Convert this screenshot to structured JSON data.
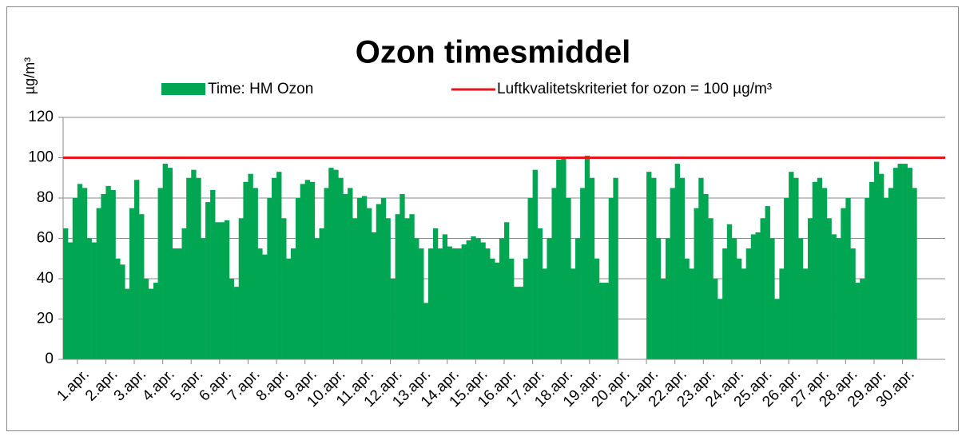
{
  "chart_data": {
    "type": "bar",
    "title": "Ozon timesmiddel",
    "y_label": "µg/m³",
    "x": [
      1,
      1.17,
      1.33,
      1.5,
      1.67,
      1.83,
      2,
      2.17,
      2.33,
      2.5,
      2.67,
      2.83,
      3,
      3.17,
      3.33,
      3.5,
      3.67,
      3.83,
      4,
      4.17,
      4.33,
      4.5,
      4.67,
      4.83,
      5,
      5.17,
      5.33,
      5.5,
      5.67,
      5.83,
      6,
      6.17,
      6.33,
      6.5,
      6.67,
      6.83,
      7,
      7.17,
      7.33,
      7.5,
      7.67,
      7.83,
      8,
      8.17,
      8.33,
      8.5,
      8.67,
      8.83,
      9,
      9.17,
      9.33,
      9.5,
      9.67,
      9.83,
      10,
      10.17,
      10.33,
      10.5,
      10.67,
      10.83,
      11,
      11.17,
      11.33,
      11.5,
      11.67,
      11.83,
      12,
      12.17,
      12.33,
      12.5,
      12.67,
      12.83,
      13,
      13.17,
      13.33,
      13.5,
      13.67,
      13.83,
      14,
      14.17,
      14.33,
      14.5,
      14.67,
      14.83,
      15,
      15.17,
      15.33,
      15.5,
      15.67,
      15.83,
      16,
      16.17,
      16.33,
      16.5,
      16.67,
      16.83,
      17,
      17.17,
      17.33,
      17.5,
      17.67,
      17.83,
      18,
      18.17,
      18.33,
      18.5,
      18.67,
      18.83,
      19,
      19.17,
      19.33,
      19.5,
      19.67,
      19.83,
      20,
      20.17,
      20.33,
      20.5,
      20.67,
      20.83,
      21,
      21.17,
      21.33,
      21.5,
      21.67,
      21.83,
      22,
      22.17,
      22.33,
      22.5,
      22.67,
      22.83,
      23,
      23.17,
      23.33,
      23.5,
      23.67,
      23.83,
      24,
      24.17,
      24.33,
      24.5,
      24.67,
      24.83,
      25,
      25.17,
      25.33,
      25.5,
      25.67,
      25.83,
      26,
      26.17,
      26.33,
      26.5,
      26.67,
      26.83,
      27,
      27.17,
      27.33,
      27.5,
      27.67,
      27.83,
      28,
      28.17,
      28.33,
      28.5,
      28.67,
      28.83,
      29,
      29.17,
      29.33,
      29.5,
      29.67,
      29.83,
      30,
      30.17,
      30.33,
      30.5,
      30.67,
      30.83
    ],
    "bar_width": 0.1667,
    "series": [
      {
        "name": "Time: HM Ozon",
        "color": "#00a651",
        "values": [
          65,
          58,
          80,
          87,
          85,
          60,
          58,
          75,
          82,
          86,
          84,
          50,
          47,
          35,
          75,
          89,
          72,
          40,
          35,
          38,
          85,
          97,
          95,
          55,
          55,
          65,
          90,
          94,
          90,
          60,
          78,
          84,
          68,
          68,
          69,
          40,
          36,
          70,
          88,
          92,
          85,
          55,
          52,
          80,
          90,
          93,
          70,
          50,
          55,
          80,
          87,
          89,
          88,
          60,
          65,
          85,
          95,
          94,
          90,
          82,
          85,
          70,
          80,
          81,
          75,
          63,
          77,
          80,
          70,
          40,
          72,
          82,
          70,
          72,
          60,
          55,
          28,
          55,
          65,
          55,
          62,
          56,
          55,
          55,
          57,
          59,
          61,
          60,
          58,
          55,
          50,
          48,
          60,
          68,
          50,
          36,
          36,
          50,
          80,
          94,
          65,
          45,
          60,
          85,
          99,
          100,
          80,
          45,
          60,
          85,
          101,
          90,
          50,
          38,
          38,
          80,
          90,
          null,
          null,
          null,
          null,
          null,
          null,
          93,
          90,
          60,
          40,
          60,
          85,
          97,
          90,
          50,
          45,
          75,
          90,
          82,
          70,
          40,
          30,
          55,
          67,
          60,
          50,
          45,
          55,
          62,
          63,
          70,
          76,
          60,
          30,
          45,
          80,
          93,
          90,
          60,
          45,
          70,
          88,
          90,
          85,
          70,
          62,
          60,
          75,
          80,
          55,
          38,
          40,
          80,
          88,
          98,
          92,
          80,
          85,
          95,
          97,
          97,
          95,
          85
        ]
      }
    ],
    "threshold": {
      "name": "Luftkvalitetskriteriet for ozon = 100 µg/m³",
      "value": 100,
      "color": "#e8141c"
    },
    "xlim": [
      1,
      32
    ],
    "xticks": [
      {
        "value": 1.5,
        "label": "1.apr."
      },
      {
        "value": 2.5,
        "label": "2.apr."
      },
      {
        "value": 3.5,
        "label": "3.apr."
      },
      {
        "value": 4.5,
        "label": "4.apr."
      },
      {
        "value": 5.5,
        "label": "5.apr."
      },
      {
        "value": 6.5,
        "label": "6.apr."
      },
      {
        "value": 7.5,
        "label": "7.apr."
      },
      {
        "value": 8.5,
        "label": "8.apr."
      },
      {
        "value": 9.5,
        "label": "9.apr."
      },
      {
        "value": 10.5,
        "label": "10.apr."
      },
      {
        "value": 11.5,
        "label": "11.apr."
      },
      {
        "value": 12.5,
        "label": "12.apr."
      },
      {
        "value": 13.5,
        "label": "13.apr."
      },
      {
        "value": 14.5,
        "label": "14.apr."
      },
      {
        "value": 15.5,
        "label": "15.apr."
      },
      {
        "value": 16.5,
        "label": "16.apr."
      },
      {
        "value": 17.5,
        "label": "17.apr."
      },
      {
        "value": 18.5,
        "label": "18.apr."
      },
      {
        "value": 19.5,
        "label": "19.apr."
      },
      {
        "value": 20.5,
        "label": "20.apr."
      },
      {
        "value": 21.5,
        "label": "21.apr."
      },
      {
        "value": 22.5,
        "label": "22.apr."
      },
      {
        "value": 23.5,
        "label": "23.apr."
      },
      {
        "value": 24.5,
        "label": "24.apr."
      },
      {
        "value": 25.5,
        "label": "25.apr."
      },
      {
        "value": 26.5,
        "label": "26.apr."
      },
      {
        "value": 27.5,
        "label": "27.apr."
      },
      {
        "value": 28.5,
        "label": "28.apr."
      },
      {
        "value": 29.5,
        "label": "29.apr."
      },
      {
        "value": 30.5,
        "label": "30.apr."
      }
    ],
    "ylim": [
      0,
      120
    ],
    "yticks": [
      0,
      20,
      40,
      60,
      80,
      100,
      120
    ],
    "grid": true
  }
}
